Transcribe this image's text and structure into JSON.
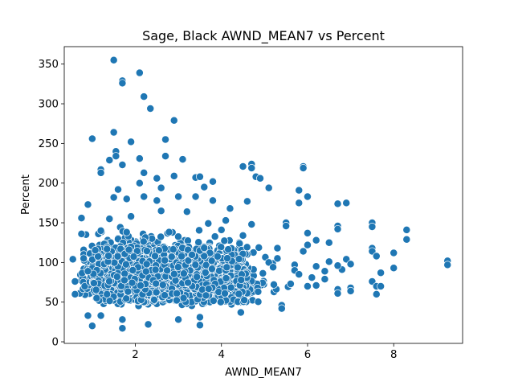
{
  "chart_data": {
    "type": "scatter",
    "title": "Sage, Black AWND_MEAN7 vs Percent",
    "xlabel": "AWND_MEAN7",
    "ylabel": "Percent",
    "xlim": [
      0.35,
      9.6
    ],
    "ylim": [
      -2,
      372
    ],
    "xticks": [
      2,
      4,
      6,
      8
    ],
    "yticks": [
      0,
      50,
      100,
      150,
      200,
      250,
      300,
      350
    ],
    "point_color": "#1f77b4",
    "grid": false,
    "outliers": [
      {
        "x": 1.5,
        "y": 355
      },
      {
        "x": 2.1,
        "y": 339
      },
      {
        "x": 1.7,
        "y": 329
      },
      {
        "x": 1.7,
        "y": 326
      },
      {
        "x": 2.2,
        "y": 309
      },
      {
        "x": 2.35,
        "y": 294
      },
      {
        "x": 2.9,
        "y": 279
      },
      {
        "x": 1.5,
        "y": 264
      },
      {
        "x": 1.0,
        "y": 256
      },
      {
        "x": 2.7,
        "y": 255
      },
      {
        "x": 1.9,
        "y": 252
      },
      {
        "x": 1.55,
        "y": 240
      },
      {
        "x": 2.7,
        "y": 234
      },
      {
        "x": 1.55,
        "y": 234
      },
      {
        "x": 1.4,
        "y": 229
      },
      {
        "x": 3.1,
        "y": 230
      },
      {
        "x": 1.7,
        "y": 223
      },
      {
        "x": 2.1,
        "y": 231
      },
      {
        "x": 4.7,
        "y": 224
      },
      {
        "x": 4.7,
        "y": 219
      },
      {
        "x": 4.5,
        "y": 221
      },
      {
        "x": 5.9,
        "y": 221
      },
      {
        "x": 5.9,
        "y": 219
      },
      {
        "x": 1.2,
        "y": 217
      },
      {
        "x": 1.2,
        "y": 213
      },
      {
        "x": 2.2,
        "y": 213
      },
      {
        "x": 3.4,
        "y": 207
      },
      {
        "x": 4.8,
        "y": 208
      },
      {
        "x": 4.9,
        "y": 206
      },
      {
        "x": 2.9,
        "y": 209
      },
      {
        "x": 2.5,
        "y": 206
      },
      {
        "x": 3.5,
        "y": 208
      },
      {
        "x": 5.1,
        "y": 194
      },
      {
        "x": 5.8,
        "y": 191
      },
      {
        "x": 6.0,
        "y": 183
      },
      {
        "x": 6.7,
        "y": 174
      },
      {
        "x": 6.9,
        "y": 175
      },
      {
        "x": 5.8,
        "y": 175
      },
      {
        "x": 4.6,
        "y": 177
      },
      {
        "x": 4.2,
        "y": 168
      },
      {
        "x": 0.9,
        "y": 173
      },
      {
        "x": 3.8,
        "y": 202
      },
      {
        "x": 3.6,
        "y": 195
      },
      {
        "x": 2.1,
        "y": 200
      },
      {
        "x": 1.6,
        "y": 192
      },
      {
        "x": 2.6,
        "y": 194
      },
      {
        "x": 3.0,
        "y": 183
      },
      {
        "x": 2.2,
        "y": 183
      },
      {
        "x": 0.75,
        "y": 156
      },
      {
        "x": 0.75,
        "y": 136
      },
      {
        "x": 1.2,
        "y": 140
      },
      {
        "x": 6.7,
        "y": 146
      },
      {
        "x": 6.7,
        "y": 142
      },
      {
        "x": 7.5,
        "y": 150
      },
      {
        "x": 7.5,
        "y": 145
      },
      {
        "x": 8.3,
        "y": 141
      },
      {
        "x": 8.3,
        "y": 129
      },
      {
        "x": 6.2,
        "y": 128
      },
      {
        "x": 6.5,
        "y": 125
      },
      {
        "x": 6.0,
        "y": 137
      },
      {
        "x": 5.5,
        "y": 150
      },
      {
        "x": 5.5,
        "y": 146
      },
      {
        "x": 4.7,
        "y": 148
      },
      {
        "x": 4.1,
        "y": 153
      },
      {
        "x": 6.0,
        "y": 122
      },
      {
        "x": 5.9,
        "y": 114
      },
      {
        "x": 5.3,
        "y": 118
      },
      {
        "x": 7.5,
        "y": 118
      },
      {
        "x": 7.5,
        "y": 114
      },
      {
        "x": 7.6,
        "y": 108
      },
      {
        "x": 8.0,
        "y": 112
      },
      {
        "x": 6.9,
        "y": 104
      },
      {
        "x": 7.0,
        "y": 98
      },
      {
        "x": 8.0,
        "y": 93
      },
      {
        "x": 6.5,
        "y": 101
      },
      {
        "x": 6.8,
        "y": 91
      },
      {
        "x": 6.7,
        "y": 96
      },
      {
        "x": 6.4,
        "y": 89
      },
      {
        "x": 6.2,
        "y": 95
      },
      {
        "x": 6.1,
        "y": 81
      },
      {
        "x": 6.4,
        "y": 79
      },
      {
        "x": 6.2,
        "y": 71
      },
      {
        "x": 6.0,
        "y": 70
      },
      {
        "x": 6.7,
        "y": 66
      },
      {
        "x": 6.7,
        "y": 61
      },
      {
        "x": 7.0,
        "y": 68
      },
      {
        "x": 7.0,
        "y": 64
      },
      {
        "x": 7.5,
        "y": 76
      },
      {
        "x": 7.6,
        "y": 70
      },
      {
        "x": 7.6,
        "y": 60
      },
      {
        "x": 7.7,
        "y": 87
      },
      {
        "x": 7.7,
        "y": 70
      },
      {
        "x": 9.25,
        "y": 102
      },
      {
        "x": 9.25,
        "y": 97
      },
      {
        "x": 5.4,
        "y": 46
      },
      {
        "x": 5.4,
        "y": 42
      },
      {
        "x": 4.45,
        "y": 37
      },
      {
        "x": 3.0,
        "y": 28
      },
      {
        "x": 3.5,
        "y": 31
      },
      {
        "x": 3.5,
        "y": 21
      },
      {
        "x": 2.3,
        "y": 22
      },
      {
        "x": 1.7,
        "y": 17
      },
      {
        "x": 1.7,
        "y": 28
      },
      {
        "x": 1.0,
        "y": 20
      },
      {
        "x": 1.2,
        "y": 33
      },
      {
        "x": 0.9,
        "y": 33
      },
      {
        "x": 0.55,
        "y": 104
      },
      {
        "x": 0.6,
        "y": 76
      },
      {
        "x": 0.6,
        "y": 60
      },
      {
        "x": 0.8,
        "y": 105
      },
      {
        "x": 0.9,
        "y": 89
      },
      {
        "x": 5.7,
        "y": 97
      },
      {
        "x": 5.7,
        "y": 90
      },
      {
        "x": 5.8,
        "y": 85
      },
      {
        "x": 5.3,
        "y": 105
      },
      {
        "x": 5.1,
        "y": 100
      },
      {
        "x": 5.2,
        "y": 94
      },
      {
        "x": 3.8,
        "y": 178
      },
      {
        "x": 3.4,
        "y": 183
      },
      {
        "x": 2.5,
        "y": 178
      },
      {
        "x": 1.8,
        "y": 180
      },
      {
        "x": 1.5,
        "y": 182
      },
      {
        "x": 1.9,
        "y": 158
      },
      {
        "x": 1.4,
        "y": 155
      },
      {
        "x": 2.6,
        "y": 165
      },
      {
        "x": 3.2,
        "y": 164
      },
      {
        "x": 4.0,
        "y": 141
      },
      {
        "x": 4.5,
        "y": 134
      }
    ],
    "cluster": {
      "description": "dense mass of ~1900 points",
      "x_range": [
        0.7,
        5.7
      ],
      "y_range": [
        45,
        170
      ],
      "center": {
        "x": 2.7,
        "y": 80
      }
    }
  }
}
